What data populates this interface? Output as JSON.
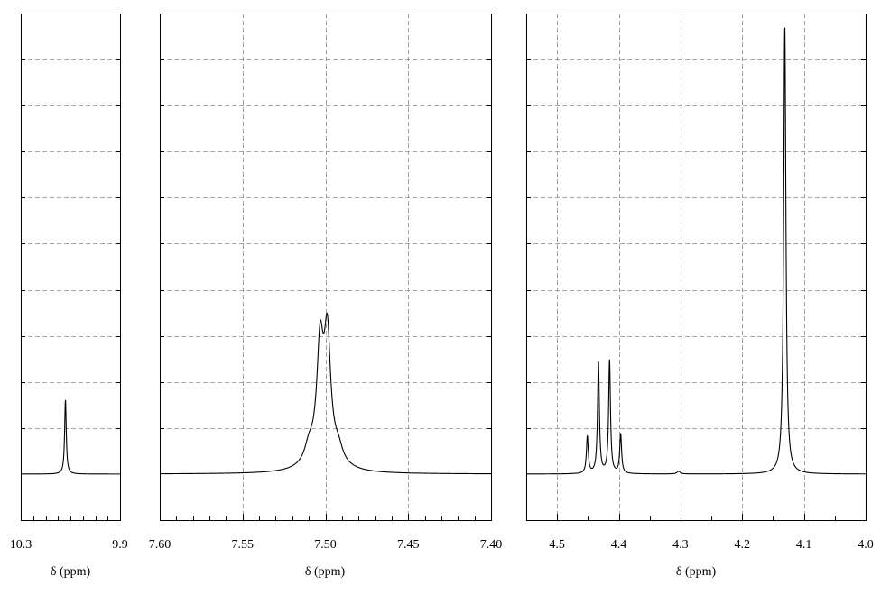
{
  "chart_data": [
    {
      "type": "line",
      "title": "",
      "xlabel": "δ (ppm)",
      "ylabel": "",
      "x_reversed": true,
      "xlim": [
        10.3,
        9.9
      ],
      "ylim": [
        -0.1,
        1.0
      ],
      "grid": true,
      "x_ticks": [
        {
          "value": 10.3,
          "label": "10.3"
        },
        {
          "value": 9.9,
          "label": "9.9"
        }
      ],
      "x_minor_ticks": [
        10.25,
        10.2,
        10.15,
        10.1,
        10.05,
        10.0,
        9.95
      ],
      "x_grid": [],
      "y_grid": [
        0.1,
        0.2,
        0.3,
        0.4,
        0.5,
        0.6,
        0.7,
        0.8,
        0.9
      ],
      "series": [
        {
          "baseline": 0.0,
          "peaks": [
            {
              "center": 10.12,
              "height": 0.16,
              "width": 0.004
            }
          ]
        }
      ]
    },
    {
      "type": "line",
      "title": "",
      "xlabel": "δ (ppm)",
      "ylabel": "",
      "x_reversed": true,
      "xlim": [
        7.6,
        7.4
      ],
      "ylim": [
        -0.1,
        1.0
      ],
      "grid": true,
      "x_ticks": [
        {
          "value": 7.6,
          "label": "7.60"
        },
        {
          "value": 7.55,
          "label": "7.55"
        },
        {
          "value": 7.5,
          "label": "7.50"
        },
        {
          "value": 7.45,
          "label": "7.45"
        },
        {
          "value": 7.4,
          "label": "7.40"
        }
      ],
      "x_minor_ticks": [
        7.59,
        7.58,
        7.57,
        7.56,
        7.54,
        7.53,
        7.52,
        7.51,
        7.49,
        7.48,
        7.47,
        7.46,
        7.44,
        7.43,
        7.42,
        7.41
      ],
      "x_grid": [
        7.55,
        7.5,
        7.45
      ],
      "y_grid": [
        0.1,
        0.2,
        0.3,
        0.4,
        0.5,
        0.6,
        0.7,
        0.8,
        0.9
      ],
      "series": [
        {
          "baseline": 0.0,
          "peaks": [
            {
              "center": 7.5032,
              "height": 0.2,
              "width": 0.0022
            },
            {
              "center": 7.4988,
              "height": 0.22,
              "width": 0.0022
            },
            {
              "center": 7.501,
              "height": 0.09,
              "width": 0.0065
            },
            {
              "center": 7.51,
              "height": 0.03,
              "width": 0.003
            },
            {
              "center": 7.492,
              "height": 0.025,
              "width": 0.003
            }
          ]
        }
      ]
    },
    {
      "type": "line",
      "title": "",
      "xlabel": "δ (ppm)",
      "ylabel": "",
      "x_reversed": true,
      "xlim": [
        4.55,
        4.0
      ],
      "ylim": [
        -0.1,
        1.0
      ],
      "grid": true,
      "x_ticks": [
        {
          "value": 4.5,
          "label": "4.5"
        },
        {
          "value": 4.4,
          "label": "4.4"
        },
        {
          "value": 4.3,
          "label": "4.3"
        },
        {
          "value": 4.2,
          "label": "4.2"
        },
        {
          "value": 4.1,
          "label": "4.1"
        },
        {
          "value": 4.0,
          "label": "4.0"
        }
      ],
      "x_minor_ticks": [
        4.55,
        4.45,
        4.35,
        4.25,
        4.15,
        4.05
      ],
      "x_grid": [
        4.5,
        4.4,
        4.3,
        4.2,
        4.1
      ],
      "y_grid": [
        0.1,
        0.2,
        0.3,
        0.4,
        0.5,
        0.6,
        0.7,
        0.8,
        0.9
      ],
      "series": [
        {
          "baseline": 0.0,
          "peaks": [
            {
              "center": 4.451,
              "height": 0.08,
              "width": 0.0018
            },
            {
              "center": 4.433,
              "height": 0.24,
              "width": 0.0018
            },
            {
              "center": 4.415,
              "height": 0.245,
              "width": 0.0018
            },
            {
              "center": 4.397,
              "height": 0.085,
              "width": 0.0018
            },
            {
              "center": 4.303,
              "height": 0.006,
              "width": 0.003
            },
            {
              "center": 4.131,
              "height": 0.97,
              "width": 0.0022
            }
          ]
        }
      ]
    }
  ]
}
